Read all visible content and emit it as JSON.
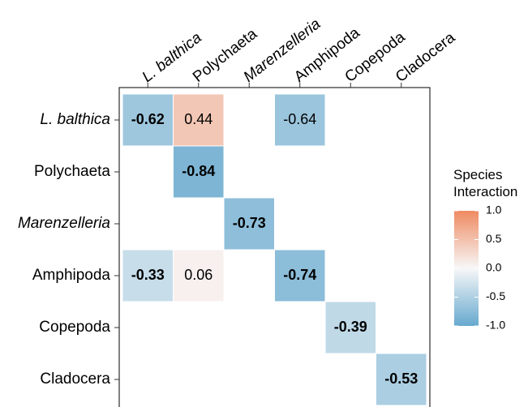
{
  "chart_data": {
    "type": "heatmap",
    "x_categories": [
      "L. balthica",
      "Polychaeta",
      "Marenzelleria",
      "Amphipoda",
      "Copepoda",
      "Cladocera"
    ],
    "y_categories": [
      "L. balthica",
      "Polychaeta",
      "Marenzelleria",
      "Amphipoda",
      "Copepoda",
      "Cladocera"
    ],
    "italic": [
      true,
      false,
      true,
      false,
      false,
      false
    ],
    "values": [
      [
        -0.62,
        0.44,
        null,
        -0.64,
        null,
        null
      ],
      [
        null,
        -0.84,
        null,
        null,
        null,
        null
      ],
      [
        null,
        null,
        -0.73,
        null,
        null,
        null
      ],
      [
        -0.33,
        0.06,
        null,
        -0.74,
        null,
        null
      ],
      [
        null,
        null,
        null,
        null,
        -0.39,
        null
      ],
      [
        null,
        null,
        null,
        null,
        null,
        -0.53
      ]
    ],
    "bold": [
      [
        true,
        false,
        null,
        false,
        null,
        null
      ],
      [
        null,
        true,
        null,
        null,
        null,
        null
      ],
      [
        null,
        null,
        true,
        null,
        null,
        null
      ],
      [
        true,
        false,
        null,
        true,
        null,
        null
      ],
      [
        null,
        null,
        null,
        null,
        true,
        null
      ],
      [
        null,
        null,
        null,
        null,
        null,
        true
      ]
    ],
    "legend_title": "Species Interaction",
    "colors": {
      "low": "#67a9cf",
      "mid": "#f7f7f7",
      "high": "#ef8a62"
    },
    "clim": [
      -1,
      1
    ],
    "cticks": [
      {
        "value": 1,
        "label": "1.0"
      },
      0.5,
      {
        "value": 0,
        "label": "0.0"
      },
      -0.5,
      {
        "value": -1,
        "label": "-1.0"
      }
    ]
  }
}
